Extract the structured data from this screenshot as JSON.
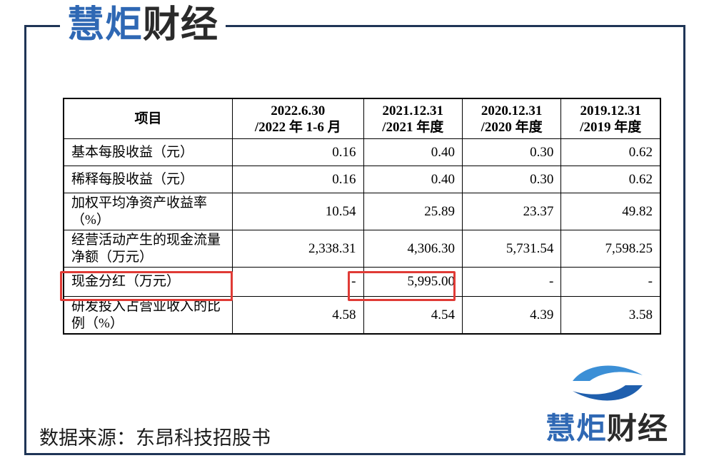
{
  "brand": {
    "name_part1": "慧炬",
    "name_part2": "财经"
  },
  "table": {
    "header": {
      "item": "项目",
      "cols": [
        {
          "line1": "2022.6.30",
          "line2": "/2022 年 1-6 月"
        },
        {
          "line1": "2021.12.31",
          "line2": "/2021 年度"
        },
        {
          "line1": "2020.12.31",
          "line2": "/2020 年度"
        },
        {
          "line1": "2019.12.31",
          "line2": "/2019 年度"
        }
      ]
    },
    "rows": [
      {
        "label": "基本每股收益（元）",
        "values": [
          "0.16",
          "0.40",
          "0.30",
          "0.62"
        ]
      },
      {
        "label": "稀释每股收益（元）",
        "values": [
          "0.16",
          "0.40",
          "0.30",
          "0.62"
        ]
      },
      {
        "label": "加权平均净资产收益率（%）",
        "values": [
          "10.54",
          "25.89",
          "23.37",
          "49.82"
        ]
      },
      {
        "label": "经营活动产生的现金流量净额（万元）",
        "values": [
          "2,338.31",
          "4,306.30",
          "5,731.54",
          "7,598.25"
        ]
      },
      {
        "label": "现金分红（万元）",
        "values": [
          "-",
          "5,995.00",
          "-",
          "-"
        ]
      },
      {
        "label": "研发投入占营业收入的比例（%）",
        "values": [
          "4.58",
          "4.54",
          "4.39",
          "3.58"
        ]
      }
    ]
  },
  "source": "数据来源：东昂科技招股书",
  "colors": {
    "frame": "#1f3556",
    "brand_blue": "#2f68b4",
    "highlight": "#e03b36"
  }
}
